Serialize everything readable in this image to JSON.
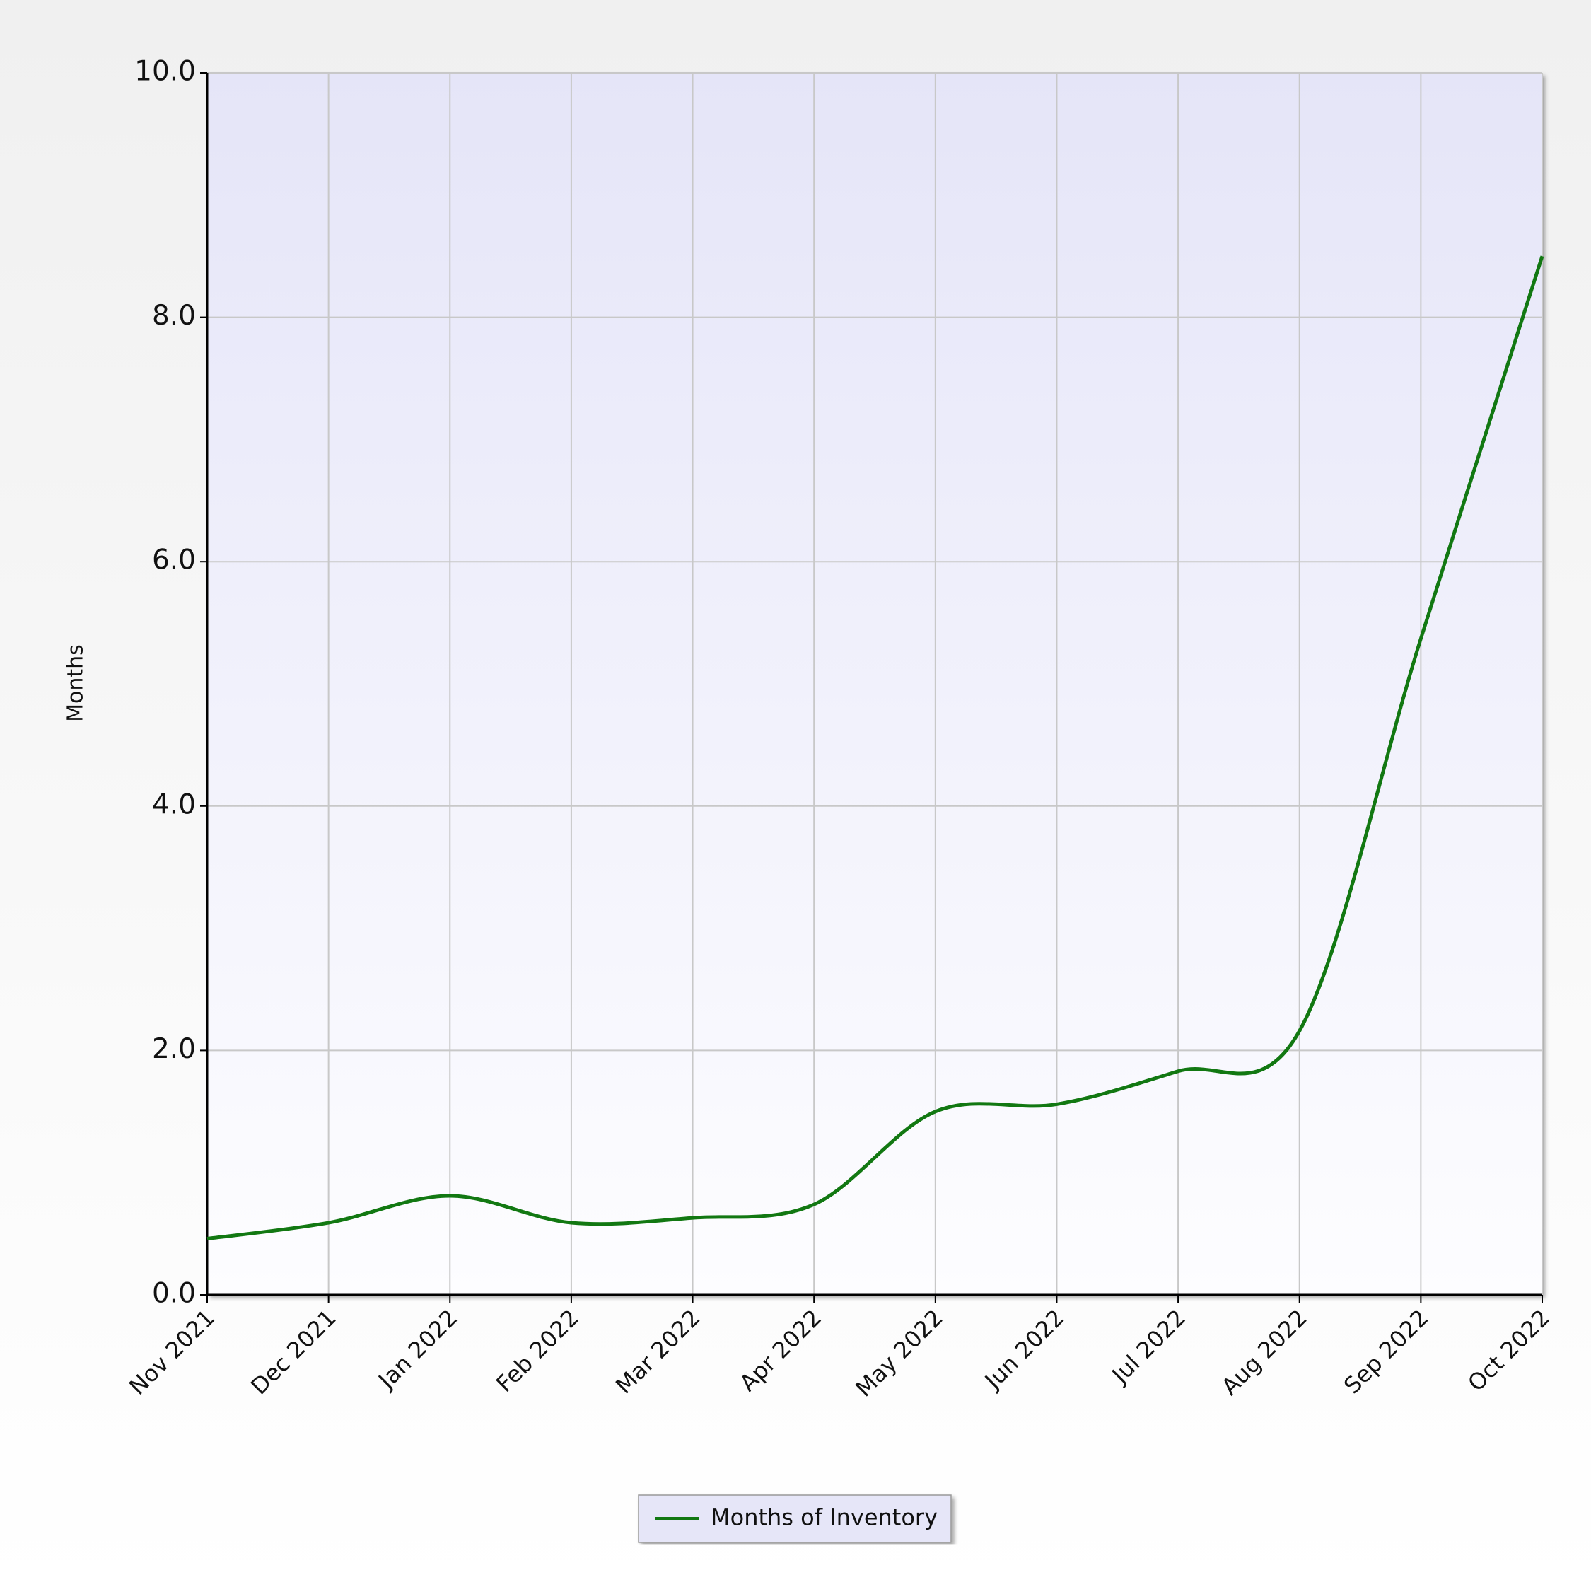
{
  "chart_data": {
    "type": "line",
    "y_label": "Months",
    "categories": [
      "Nov 2021",
      "Dec 2021",
      "Jan 2022",
      "Feb 2022",
      "Mar 2022",
      "Apr 2022",
      "May 2022",
      "Jun 2022",
      "Jul 2022",
      "Aug 2022",
      "Sep 2022",
      "Oct 2022"
    ],
    "series": [
      {
        "name": "Months of Inventory",
        "color": "#127812",
        "values": [
          0.46,
          0.59,
          0.81,
          0.59,
          0.63,
          0.74,
          1.5,
          1.56,
          1.83,
          2.16,
          5.37,
          8.5
        ]
      }
    ],
    "ylim": [
      0,
      10
    ],
    "yticks": [
      {
        "value": 0,
        "label": "0.0"
      },
      {
        "value": 2,
        "label": "2.0"
      },
      {
        "value": 4,
        "label": "4.0"
      },
      {
        "value": 6,
        "label": "6.0"
      },
      {
        "value": 8,
        "label": "8.0"
      },
      {
        "value": 10,
        "label": "10.0"
      }
    ],
    "grid": true,
    "smooth": true,
    "legend": "bottom"
  }
}
